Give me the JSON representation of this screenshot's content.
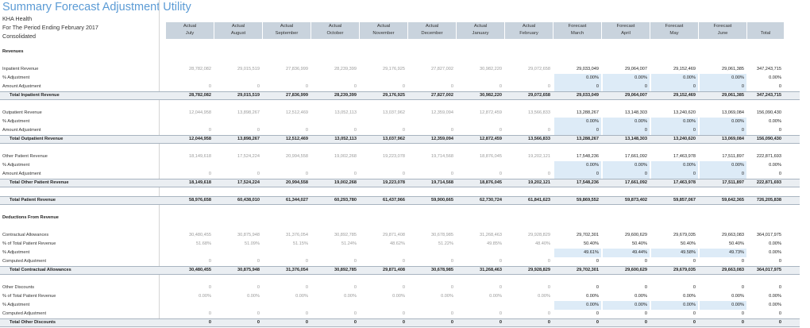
{
  "title": "Summary Forecast Adjustment Utility",
  "entity": "KHA Health",
  "period": "For The Period Ending February 2017",
  "scope": "Consolidated",
  "columns": [
    {
      "type": "Actual",
      "month": "July"
    },
    {
      "type": "Actual",
      "month": "August"
    },
    {
      "type": "Actual",
      "month": "September"
    },
    {
      "type": "Actual",
      "month": "October"
    },
    {
      "type": "Actual",
      "month": "November"
    },
    {
      "type": "Actual",
      "month": "December"
    },
    {
      "type": "Actual",
      "month": "January"
    },
    {
      "type": "Actual",
      "month": "February"
    },
    {
      "type": "Forecast",
      "month": "March"
    },
    {
      "type": "Forecast",
      "month": "April"
    },
    {
      "type": "Forecast",
      "month": "May"
    },
    {
      "type": "Forecast",
      "month": "June"
    },
    {
      "type": "",
      "month": "Total"
    }
  ],
  "rows": [
    {
      "kind": "section",
      "label": "Revenues",
      "values": []
    },
    {
      "kind": "blank"
    },
    {
      "kind": "data",
      "label": "Inpatient Revenue",
      "values": [
        "28,782,082",
        "29,015,519",
        "27,836,999",
        "28,239,399",
        "29,176,925",
        "27,827,002",
        "30,982,220",
        "29,072,658",
        "29,033,049",
        "29,064,007",
        "29,152,469",
        "29,061,385",
        "347,243,715"
      ]
    },
    {
      "kind": "data",
      "label": "% Adjustment",
      "input": true,
      "values": [
        "",
        "",
        "",
        "",
        "",
        "",
        "",
        "",
        "0.00%",
        "0.00%",
        "0.00%",
        "0.00%",
        "0.00%"
      ]
    },
    {
      "kind": "data",
      "label": "Amount Adjustment",
      "input": true,
      "values": [
        "0",
        "0",
        "0",
        "0",
        "0",
        "0",
        "0",
        "0",
        "0",
        "0",
        "0",
        "0",
        "0"
      ]
    },
    {
      "kind": "total",
      "label": "Total Inpatient Revenue",
      "values": [
        "28,782,082",
        "29,015,519",
        "27,836,999",
        "28,239,399",
        "29,176,925",
        "27,827,002",
        "30,982,220",
        "29,072,658",
        "29,033,049",
        "29,064,007",
        "29,152,469",
        "29,061,385",
        "347,243,715"
      ]
    },
    {
      "kind": "blank"
    },
    {
      "kind": "data",
      "label": "Outpatient Revenue",
      "values": [
        "12,044,958",
        "13,898,267",
        "12,512,469",
        "13,052,113",
        "13,037,962",
        "12,359,094",
        "12,872,459",
        "13,566,833",
        "13,288,267",
        "13,148,303",
        "13,240,620",
        "13,069,084",
        "156,090,430"
      ]
    },
    {
      "kind": "data",
      "label": "% Adjustment",
      "input": true,
      "values": [
        "",
        "",
        "",
        "",
        "",
        "",
        "",
        "",
        "0.00%",
        "0.00%",
        "0.00%",
        "0.00%",
        "0.00%"
      ]
    },
    {
      "kind": "data",
      "label": "Amount Adjustment",
      "input": true,
      "values": [
        "0",
        "0",
        "0",
        "0",
        "0",
        "0",
        "0",
        "0",
        "0",
        "0",
        "0",
        "0",
        "0"
      ]
    },
    {
      "kind": "total",
      "label": "Total Outpatient Revenue",
      "values": [
        "12,044,958",
        "13,898,267",
        "12,512,469",
        "13,052,113",
        "13,037,962",
        "12,359,094",
        "12,872,459",
        "13,566,833",
        "13,288,267",
        "13,148,303",
        "13,240,620",
        "13,069,084",
        "156,090,430"
      ]
    },
    {
      "kind": "blank"
    },
    {
      "kind": "data",
      "label": "Other Patient Revenue",
      "values": [
        "18,149,618",
        "17,524,224",
        "20,994,558",
        "19,002,268",
        "19,223,078",
        "19,714,568",
        "18,876,045",
        "19,202,121",
        "17,548,236",
        "17,661,092",
        "17,463,978",
        "17,511,897",
        "222,871,693"
      ]
    },
    {
      "kind": "data",
      "label": "% Adjustment",
      "input": true,
      "values": [
        "",
        "",
        "",
        "",
        "",
        "",
        "",
        "",
        "0.00%",
        "0.00%",
        "0.00%",
        "0.00%",
        "0.00%"
      ]
    },
    {
      "kind": "data",
      "label": "Amount Adjustment",
      "input": true,
      "values": [
        "0",
        "0",
        "0",
        "0",
        "0",
        "0",
        "0",
        "0",
        "0",
        "0",
        "0",
        "0",
        "0"
      ]
    },
    {
      "kind": "total",
      "label": "Total Other Patient Revenue",
      "values": [
        "18,149,618",
        "17,524,224",
        "20,994,558",
        "19,002,268",
        "19,223,078",
        "19,714,568",
        "18,876,045",
        "19,202,121",
        "17,548,236",
        "17,661,092",
        "17,463,978",
        "17,511,897",
        "222,871,693"
      ]
    },
    {
      "kind": "blank"
    },
    {
      "kind": "total",
      "label": "Total Patient Revenue",
      "values": [
        "58,976,658",
        "60,438,010",
        "61,344,027",
        "60,293,780",
        "61,437,966",
        "59,900,665",
        "62,730,724",
        "61,841,623",
        "59,869,552",
        "59,873,402",
        "59,857,067",
        "59,642,365",
        "726,205,838"
      ]
    },
    {
      "kind": "blank"
    },
    {
      "kind": "section",
      "label": "Deductions From Revenue",
      "values": []
    },
    {
      "kind": "blank"
    },
    {
      "kind": "data",
      "label": "Contractual Allowances",
      "values": [
        "30,480,455",
        "30,875,948",
        "31,376,054",
        "30,892,785",
        "29,871,408",
        "30,678,985",
        "31,268,463",
        "29,928,829",
        "29,702,301",
        "29,600,629",
        "29,679,035",
        "29,663,083",
        "364,017,975"
      ]
    },
    {
      "kind": "data",
      "label": "% of Total Patient Revenue",
      "values": [
        "51.68%",
        "51.09%",
        "51.15%",
        "51.24%",
        "48.62%",
        "51.22%",
        "49.85%",
        "48.40%",
        "50.40%",
        "50.40%",
        "50.40%",
        "50.40%",
        "0.00%"
      ]
    },
    {
      "kind": "data",
      "label": "% Adjustment",
      "input": true,
      "values": [
        "",
        "",
        "",
        "",
        "",
        "",
        "",
        "",
        "49.61%",
        "49.44%",
        "49.58%",
        "49.73%",
        "0.00%"
      ]
    },
    {
      "kind": "data",
      "label": "Computed Adjustment",
      "values": [
        "0",
        "0",
        "0",
        "0",
        "0",
        "0",
        "0",
        "0",
        "0",
        "0",
        "0",
        "0",
        "0"
      ]
    },
    {
      "kind": "total",
      "label": "Total Contractual Allowances",
      "values": [
        "30,480,455",
        "30,875,948",
        "31,376,054",
        "30,892,785",
        "29,871,408",
        "30,678,985",
        "31,268,463",
        "29,928,829",
        "29,702,301",
        "29,600,629",
        "29,679,035",
        "29,663,083",
        "364,017,975"
      ]
    },
    {
      "kind": "blank"
    },
    {
      "kind": "data",
      "label": "Other Discounts",
      "values": [
        "0",
        "0",
        "0",
        "0",
        "0",
        "0",
        "0",
        "0",
        "0",
        "0",
        "0",
        "0",
        "0"
      ]
    },
    {
      "kind": "data",
      "label": "% of Total Patient Revenue",
      "values": [
        "0.00%",
        "0.00%",
        "0.00%",
        "0.00%",
        "0.00%",
        "0.00%",
        "0.00%",
        "0.00%",
        "0.00%",
        "0.00%",
        "0.00%",
        "0.00%",
        "0.00%"
      ]
    },
    {
      "kind": "data",
      "label": "% Adjustment",
      "input": true,
      "values": [
        "",
        "",
        "",
        "",
        "",
        "",
        "",
        "",
        "0.00%",
        "0.00%",
        "0.00%",
        "0.00%",
        "0.00%"
      ]
    },
    {
      "kind": "data",
      "label": "Computed Adjustment",
      "values": [
        "0",
        "0",
        "0",
        "0",
        "0",
        "0",
        "0",
        "0",
        "0",
        "0",
        "0",
        "0",
        "0"
      ]
    },
    {
      "kind": "total",
      "label": "Total Other Discounts",
      "values": [
        "0",
        "0",
        "0",
        "0",
        "0",
        "0",
        "0",
        "0",
        "0",
        "0",
        "0",
        "0",
        "0"
      ]
    }
  ],
  "colors": {
    "title": "#5b9bd5",
    "header_bg": "#c9d3dd",
    "input_bg": "#ddebf7",
    "total_bg": "#eaeef2",
    "actual_text": "#9a9a9a"
  }
}
